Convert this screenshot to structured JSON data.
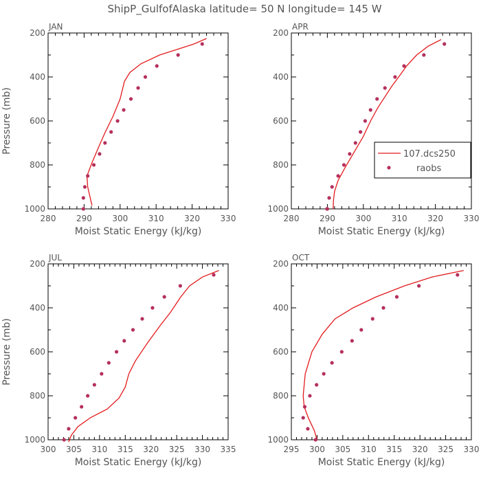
{
  "title": "ShipP_GulfofAlaska   latitude= 50 N longitude= 145 W",
  "colors": {
    "model": "#e31a1c",
    "obs": "#b5305c",
    "frame": "#000000",
    "text": "#555555"
  },
  "legend": {
    "model_label": "107.dcs250",
    "obs_label": "raobs",
    "panel": "APR"
  },
  "chart_data": [
    {
      "type": "line",
      "title": "JAN",
      "xlabel": "Moist Static Energy (kJ/kg)",
      "ylabel": "Pressure (mb)",
      "xlim": [
        280,
        330
      ],
      "ylim": [
        200,
        1000
      ],
      "y_inverted": true,
      "xticks": [
        280,
        290,
        300,
        310,
        320,
        330
      ],
      "yticks": [
        200,
        400,
        600,
        800,
        1000
      ],
      "series": [
        {
          "name": "107.dcs250",
          "kind": "line",
          "x": [
            324.0,
            320.5,
            315.8,
            311.0,
            305.8,
            302.7,
            301.2,
            300.0,
            298.0,
            295.9,
            294.0,
            292.2,
            290.8,
            291.0,
            291.7,
            292.2
          ],
          "y": [
            225,
            250,
            275,
            300,
            340,
            380,
            420,
            500,
            580,
            650,
            720,
            790,
            850,
            900,
            950,
            985
          ]
        },
        {
          "name": "raobs",
          "kind": "scatter",
          "x": [
            322.8,
            316.1,
            310.2,
            307.0,
            305.0,
            303.0,
            301.0,
            299.3,
            297.5,
            295.8,
            294.3,
            292.7,
            291.0,
            290.2,
            289.8,
            289.8
          ],
          "y": [
            250,
            300,
            350,
            400,
            450,
            500,
            550,
            600,
            650,
            700,
            750,
            800,
            850,
            900,
            950,
            1000
          ]
        }
      ]
    },
    {
      "type": "line",
      "title": "APR",
      "xlabel": "Moist Static Energy (kJ/kg)",
      "ylabel": "",
      "xlim": [
        280,
        330
      ],
      "ylim": [
        200,
        1000
      ],
      "y_inverted": true,
      "xticks": [
        280,
        290,
        300,
        310,
        320,
        330
      ],
      "yticks": [
        200,
        400,
        600,
        800,
        1000
      ],
      "series": [
        {
          "name": "107.dcs250",
          "kind": "line",
          "x": [
            321.6,
            318.0,
            314.8,
            312.0,
            309.8,
            308.0,
            306.0,
            304.0,
            302.0,
            300.0,
            297.5,
            295.0,
            293.0,
            292.0,
            291.7,
            291.6
          ],
          "y": [
            230,
            260,
            300,
            350,
            400,
            440,
            490,
            540,
            600,
            670,
            740,
            810,
            870,
            920,
            960,
            1000
          ]
        },
        {
          "name": "raobs",
          "kind": "scatter",
          "x": [
            322.5,
            316.8,
            311.3,
            308.8,
            306.0,
            303.8,
            302.0,
            300.5,
            299.2,
            297.8,
            296.2,
            294.6,
            293.0,
            291.3,
            290.5,
            290.0,
            289.9
          ],
          "y": [
            250,
            300,
            350,
            400,
            450,
            500,
            550,
            600,
            650,
            700,
            750,
            800,
            850,
            900,
            950,
            1000,
            1000
          ]
        }
      ]
    },
    {
      "type": "line",
      "title": "JUL",
      "xlabel": "Moist Static Energy (kJ/kg)",
      "ylabel": "Pressure (mb)",
      "xlim": [
        300,
        335
      ],
      "ylim": [
        200,
        1000
      ],
      "y_inverted": true,
      "xticks": [
        300,
        305,
        310,
        315,
        320,
        325,
        330,
        335
      ],
      "yticks": [
        200,
        400,
        600,
        800,
        1000
      ],
      "series": [
        {
          "name": "107.dcs250",
          "kind": "line",
          "x": [
            333.2,
            330.0,
            327.5,
            325.8,
            323.8,
            321.8,
            319.3,
            317.0,
            315.7,
            315.0,
            313.8,
            311.5,
            308.2,
            305.8,
            304.5,
            304.0
          ],
          "y": [
            230,
            260,
            300,
            350,
            420,
            480,
            560,
            640,
            700,
            760,
            810,
            860,
            900,
            940,
            980,
            1010
          ]
        },
        {
          "name": "raobs",
          "kind": "scatter",
          "x": [
            332.2,
            325.7,
            322.6,
            320.3,
            318.3,
            316.5,
            314.8,
            313.3,
            311.8,
            310.4,
            309.0,
            307.7,
            306.5,
            305.3,
            304.0,
            303.1
          ],
          "y": [
            250,
            300,
            350,
            400,
            450,
            500,
            550,
            600,
            650,
            700,
            750,
            800,
            850,
            900,
            950,
            1000
          ]
        }
      ]
    },
    {
      "type": "line",
      "title": "OCT",
      "xlabel": "Moist Static Energy (kJ/kg)",
      "ylabel": "",
      "xlim": [
        295,
        330
      ],
      "ylim": [
        200,
        1000
      ],
      "y_inverted": true,
      "xticks": [
        295,
        300,
        305,
        310,
        315,
        320,
        325,
        330
      ],
      "yticks": [
        200,
        400,
        600,
        800,
        1000
      ],
      "series": [
        {
          "name": "107.dcs250",
          "kind": "line",
          "x": [
            328.5,
            322.3,
            317.0,
            311.5,
            307.0,
            303.5,
            301.0,
            299.0,
            297.7,
            297.3,
            297.5,
            298.3,
            299.0,
            299.5,
            299.8,
            300.0
          ],
          "y": [
            230,
            260,
            300,
            350,
            400,
            450,
            520,
            600,
            700,
            800,
            850,
            900,
            935,
            960,
            985,
            1000
          ]
        },
        {
          "name": "raobs",
          "kind": "scatter",
          "x": [
            327.3,
            319.8,
            315.5,
            312.9,
            310.8,
            308.6,
            306.8,
            304.8,
            302.9,
            301.3,
            299.9,
            298.6,
            297.6,
            297.3,
            298.2,
            299.7
          ],
          "y": [
            250,
            300,
            350,
            400,
            450,
            500,
            550,
            600,
            650,
            700,
            750,
            800,
            850,
            900,
            950,
            1000
          ]
        }
      ]
    }
  ]
}
